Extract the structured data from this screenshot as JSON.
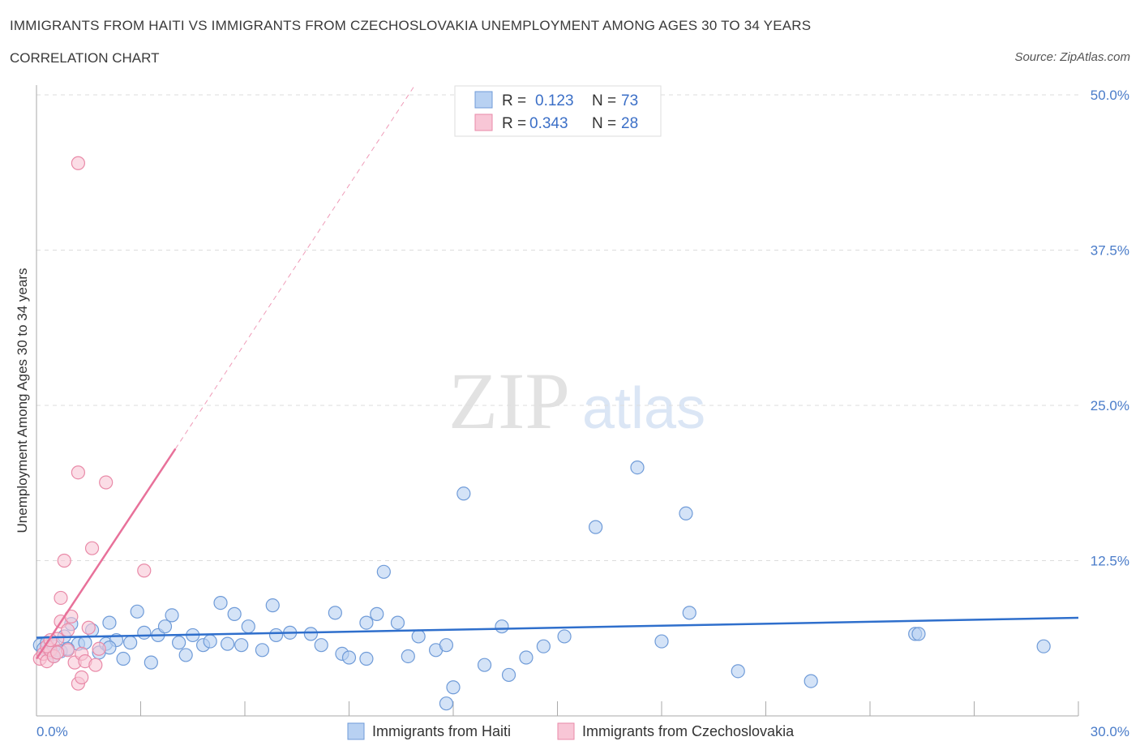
{
  "header": {
    "title": "IMMIGRANTS FROM HAITI VS IMMIGRANTS FROM CZECHOSLOVAKIA UNEMPLOYMENT AMONG AGES 30 TO 34 YEARS",
    "subtitle": "CORRELATION CHART",
    "source": "Source: ZipAtlas.com"
  },
  "watermark": {
    "zip": "ZIP",
    "atlas": "atlas"
  },
  "legend": {
    "r_label": "R =",
    "n_label": "N =",
    "rows": [
      {
        "r": "0.123",
        "n": "73"
      },
      {
        "r": "0.343",
        "n": "28"
      }
    ]
  },
  "colors": {
    "haiti_fill": "#b8d1f2",
    "haiti_stroke": "#6f9bd8",
    "haiti_line": "#2f6fcc",
    "czech_fill": "#f8c6d6",
    "czech_stroke": "#e98aa8",
    "czech_line": "#e8719a",
    "grid": "#dddddd",
    "axis_text": "#4a7cc9"
  },
  "chart_data": {
    "type": "scatter",
    "title": "IMMIGRANTS FROM HAITI VS IMMIGRANTS FROM CZECHOSLOVAKIA UNEMPLOYMENT AMONG AGES 30 TO 34 YEARS",
    "xlabel": "",
    "ylabel": "Unemployment Among Ages 30 to 34 years",
    "xlim": [
      0,
      30
    ],
    "ylim": [
      0,
      50
    ],
    "x_tick_labels": [
      "0.0%",
      "30.0%"
    ],
    "y_ticks": [
      12.5,
      25.0,
      37.5,
      50.0
    ],
    "y_tick_labels": [
      "12.5%",
      "25.0%",
      "37.5%",
      "50.0%"
    ],
    "series": [
      {
        "name": "Immigrants from Haiti",
        "points": [
          [
            0.1,
            5.7
          ],
          [
            0.2,
            5.4
          ],
          [
            0.3,
            5.9
          ],
          [
            0.4,
            5.1
          ],
          [
            0.5,
            5.6
          ],
          [
            0.7,
            5.2
          ],
          [
            0.8,
            6.4
          ],
          [
            1.0,
            7.4
          ],
          [
            1.2,
            5.8
          ],
          [
            1.4,
            5.9
          ],
          [
            1.6,
            6.9
          ],
          [
            1.8,
            5.1
          ],
          [
            2.0,
            5.8
          ],
          [
            2.1,
            7.5
          ],
          [
            2.3,
            6.1
          ],
          [
            2.5,
            4.6
          ],
          [
            2.7,
            5.9
          ],
          [
            2.9,
            8.4
          ],
          [
            3.1,
            6.7
          ],
          [
            3.3,
            4.3
          ],
          [
            3.5,
            6.5
          ],
          [
            3.7,
            7.2
          ],
          [
            3.9,
            8.1
          ],
          [
            4.1,
            5.9
          ],
          [
            4.3,
            4.9
          ],
          [
            4.5,
            6.5
          ],
          [
            4.8,
            5.7
          ],
          [
            5.0,
            6.0
          ],
          [
            5.3,
            9.1
          ],
          [
            5.5,
            5.8
          ],
          [
            5.7,
            8.2
          ],
          [
            5.9,
            5.7
          ],
          [
            6.1,
            7.2
          ],
          [
            6.5,
            5.3
          ],
          [
            6.8,
            8.9
          ],
          [
            6.9,
            6.5
          ],
          [
            7.3,
            6.7
          ],
          [
            7.9,
            6.6
          ],
          [
            8.2,
            5.7
          ],
          [
            8.6,
            8.3
          ],
          [
            8.8,
            5.0
          ],
          [
            9.0,
            4.7
          ],
          [
            9.5,
            4.6
          ],
          [
            9.5,
            7.5
          ],
          [
            9.8,
            8.2
          ],
          [
            10.0,
            11.6
          ],
          [
            10.4,
            7.5
          ],
          [
            10.7,
            4.8
          ],
          [
            11.0,
            6.4
          ],
          [
            11.5,
            5.3
          ],
          [
            11.8,
            5.7
          ],
          [
            12.0,
            2.3
          ],
          [
            12.3,
            17.9
          ],
          [
            12.9,
            4.1
          ],
          [
            13.4,
            7.2
          ],
          [
            13.6,
            3.3
          ],
          [
            14.1,
            4.7
          ],
          [
            14.6,
            5.6
          ],
          [
            15.2,
            6.4
          ],
          [
            16.1,
            15.2
          ],
          [
            17.3,
            20.0
          ],
          [
            18.0,
            6.0
          ],
          [
            18.7,
            16.3
          ],
          [
            18.8,
            8.3
          ],
          [
            20.2,
            3.6
          ],
          [
            22.3,
            2.8
          ],
          [
            25.3,
            6.6
          ],
          [
            25.4,
            6.6
          ],
          [
            29.0,
            5.6
          ],
          [
            11.8,
            1.0
          ],
          [
            2.1,
            5.5
          ],
          [
            0.5,
            4.8
          ],
          [
            0.9,
            5.4
          ]
        ]
      },
      {
        "name": "Immigrants from Czechoslovakia",
        "points": [
          [
            0.1,
            4.6
          ],
          [
            0.2,
            5.0
          ],
          [
            0.3,
            4.4
          ],
          [
            0.4,
            5.3
          ],
          [
            0.5,
            4.8
          ],
          [
            0.6,
            6.2
          ],
          [
            0.7,
            7.6
          ],
          [
            0.7,
            9.5
          ],
          [
            0.8,
            12.5
          ],
          [
            0.9,
            5.3
          ],
          [
            1.0,
            8.0
          ],
          [
            1.1,
            4.3
          ],
          [
            1.2,
            2.6
          ],
          [
            1.3,
            3.1
          ],
          [
            1.3,
            5.0
          ],
          [
            1.4,
            4.4
          ],
          [
            1.2,
            44.5
          ],
          [
            1.2,
            19.6
          ],
          [
            1.5,
            7.1
          ],
          [
            1.6,
            13.5
          ],
          [
            1.7,
            4.1
          ],
          [
            1.8,
            5.4
          ],
          [
            2.0,
            18.8
          ],
          [
            3.1,
            11.7
          ],
          [
            0.3,
            5.6
          ],
          [
            0.4,
            6.1
          ],
          [
            0.6,
            5.1
          ],
          [
            0.9,
            6.9
          ]
        ]
      }
    ],
    "trendlines": [
      {
        "series": "Immigrants from Haiti",
        "x": [
          0,
          30
        ],
        "y": [
          6.3,
          7.9
        ],
        "style": "solid"
      },
      {
        "series": "Immigrants from Czechoslovakia",
        "x": [
          0,
          4.0
        ],
        "y": [
          4.6,
          21.5
        ],
        "style": "solid"
      },
      {
        "series": "Immigrants from Czechoslovakia",
        "x": [
          4.0,
          10.9
        ],
        "y": [
          21.5,
          50.8
        ],
        "style": "dashed"
      }
    ]
  }
}
